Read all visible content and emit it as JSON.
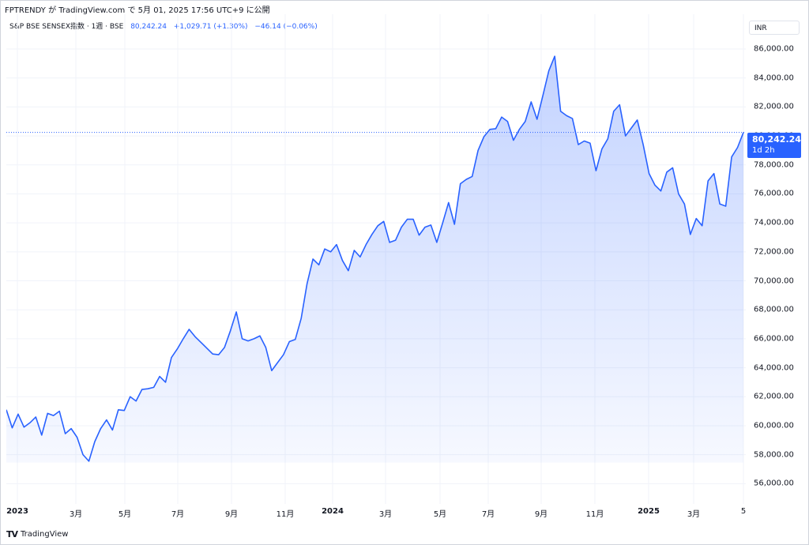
{
  "header": {
    "published_by": "FPTRENDY が TradingView.com で 5月 01, 2025 17:56 UTC+9 に公開"
  },
  "legend": {
    "symbol": "S&P BSE SENSEX指数 · 1週 · BSE",
    "last": "80,242.24",
    "change": "+1,029.71 (+1.30%)",
    "change2": "−46.14 (−0.06%)"
  },
  "currency_button": "INR",
  "price_tag": {
    "value": "80,242.24",
    "countdown": "1d 2h"
  },
  "brand": {
    "logo": "TV",
    "name": "TradingView"
  },
  "colors": {
    "line": "#2962ff",
    "fill": "#2962ff",
    "grid": "#f0f3fa",
    "tag": "#2962ff"
  },
  "chart_data": {
    "type": "area",
    "series": [
      {
        "values": [
          61100,
          59850,
          60800,
          59900,
          60200,
          60600,
          59350,
          60850,
          60700,
          61000,
          59450,
          59800,
          59200,
          58000,
          57550,
          58900,
          59800,
          60400,
          59700,
          61100,
          61050,
          62000,
          61700,
          62500,
          62550,
          62650,
          63400,
          63000,
          64700,
          65300,
          66000,
          66650,
          66150,
          65750,
          65350,
          64950,
          64900,
          65400,
          66550,
          67850,
          66000,
          65850,
          66000,
          66200,
          65400,
          63800,
          64350,
          64900,
          65800,
          65950,
          67400,
          69800,
          71500,
          71100,
          72200,
          72000,
          72500,
          71400,
          70700,
          72100,
          71650,
          72500,
          73200,
          73800,
          74100,
          72650,
          72800,
          73700,
          74250,
          74250,
          73150,
          73700,
          73850,
          72650,
          74000,
          75400,
          73900,
          76700,
          77000,
          77200,
          79000,
          79950,
          80450,
          80500,
          81300,
          81000,
          79700,
          80450,
          81000,
          82350,
          81150,
          82800,
          84500,
          85500,
          81700,
          81400,
          81200,
          79400,
          79650,
          79500,
          77600,
          79100,
          79800,
          81700,
          82150,
          80000,
          80550,
          81100,
          79400,
          77400,
          76600,
          76200,
          77500,
          77800,
          76000,
          75300,
          73200,
          74300,
          73800,
          76900,
          77400,
          75300,
          75150,
          78550,
          79200,
          80242.24
        ]
      }
    ],
    "x_labels": [
      "2023",
      "3月",
      "5月",
      "7月",
      "9月",
      "11月",
      "2024",
      "3月",
      "5月",
      "7月",
      "9月",
      "11月",
      "2025",
      "3月",
      "5"
    ],
    "y_ticks": [
      "56,000.00",
      "58,000.00",
      "60,000.00",
      "62,000.00",
      "64,000.00",
      "66,000.00",
      "68,000.00",
      "70,000.00",
      "72,000.00",
      "74,000.00",
      "76,000.00",
      "78,000.00",
      "80,000.00",
      "82,000.00",
      "84,000.00",
      "86,000.00"
    ],
    "ylim": [
      54600,
      88400
    ],
    "grid": true,
    "last_value": 80242.24
  }
}
